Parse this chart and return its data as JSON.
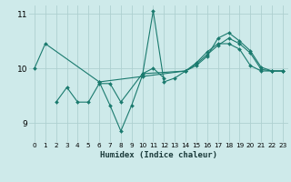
{
  "xlabel": "Humidex (Indice chaleur)",
  "ylabel": "",
  "xlim": [
    -0.5,
    23.5
  ],
  "ylim": [
    8.65,
    11.15
  ],
  "yticks": [
    9,
    10,
    11
  ],
  "xticks": [
    0,
    1,
    2,
    3,
    4,
    5,
    6,
    7,
    8,
    9,
    10,
    11,
    12,
    13,
    14,
    15,
    16,
    17,
    18,
    19,
    20,
    21,
    22,
    23
  ],
  "bg_color": "#ceeaea",
  "grid_color": "#aed0d0",
  "line_color": "#1a7a6e",
  "series": [
    {
      "x": [
        0,
        1,
        6,
        7,
        8,
        9,
        10,
        11,
        12,
        13,
        14,
        15,
        16,
        17,
        18,
        19,
        20,
        21,
        22,
        23
      ],
      "y": [
        10.0,
        10.45,
        9.75,
        9.32,
        8.85,
        9.32,
        9.87,
        11.05,
        9.75,
        9.82,
        9.95,
        10.1,
        10.3,
        10.45,
        10.45,
        10.35,
        10.05,
        9.95,
        9.95,
        9.95
      ]
    },
    {
      "x": [
        2,
        3,
        4,
        5,
        6,
        7,
        8,
        10,
        11,
        12
      ],
      "y": [
        9.38,
        9.65,
        9.38,
        9.38,
        9.72,
        9.72,
        9.38,
        9.9,
        10.0,
        9.82
      ]
    },
    {
      "x": [
        6,
        10,
        14,
        15,
        16,
        17,
        18,
        19,
        20,
        21,
        22,
        23
      ],
      "y": [
        9.75,
        9.85,
        9.95,
        10.05,
        10.22,
        10.55,
        10.65,
        10.5,
        10.32,
        10.02,
        9.95,
        9.95
      ]
    },
    {
      "x": [
        10,
        14,
        15,
        16,
        17,
        18,
        19,
        20,
        21,
        22,
        23
      ],
      "y": [
        9.9,
        9.95,
        10.08,
        10.25,
        10.42,
        10.55,
        10.45,
        10.28,
        9.98,
        9.95,
        9.95
      ]
    }
  ]
}
